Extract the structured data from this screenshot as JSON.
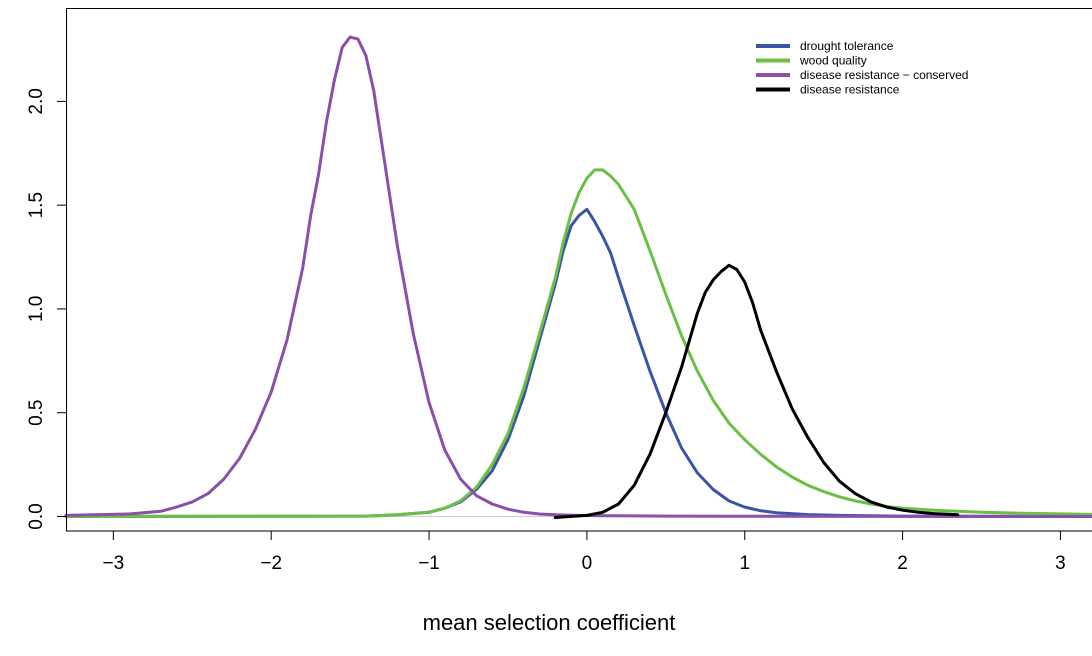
{
  "chart_data": {
    "type": "line",
    "xlabel": "mean selection coefficient",
    "ylabel": "",
    "title": "",
    "xlim": [
      -3.3,
      3.2
    ],
    "ylim": [
      -0.07,
      2.45
    ],
    "x_ticks": [
      -3,
      -2,
      -1,
      0,
      1,
      2,
      3
    ],
    "x_tick_labels": [
      "−3",
      "−2",
      "−1",
      "0",
      "1",
      "2",
      "3"
    ],
    "y_ticks": [
      0.0,
      0.5,
      1.0,
      1.5,
      2.0
    ],
    "y_tick_labels": [
      "0.0",
      "0.5",
      "1.0",
      "1.5",
      "2.0"
    ],
    "grid": false,
    "legend_position": "top-right",
    "series": [
      {
        "name": "drought tolerance",
        "color": "#3a55a4",
        "points": [
          [
            -3.3,
            0
          ],
          [
            -1.4,
            0.002
          ],
          [
            -1.2,
            0.008
          ],
          [
            -1.0,
            0.02
          ],
          [
            -0.9,
            0.04
          ],
          [
            -0.8,
            0.07
          ],
          [
            -0.7,
            0.13
          ],
          [
            -0.6,
            0.22
          ],
          [
            -0.5,
            0.37
          ],
          [
            -0.4,
            0.58
          ],
          [
            -0.3,
            0.85
          ],
          [
            -0.2,
            1.12
          ],
          [
            -0.15,
            1.28
          ],
          [
            -0.1,
            1.4
          ],
          [
            -0.05,
            1.45
          ],
          [
            0.0,
            1.48
          ],
          [
            0.05,
            1.42
          ],
          [
            0.1,
            1.35
          ],
          [
            0.15,
            1.27
          ],
          [
            0.2,
            1.15
          ],
          [
            0.3,
            0.92
          ],
          [
            0.4,
            0.7
          ],
          [
            0.5,
            0.5
          ],
          [
            0.6,
            0.33
          ],
          [
            0.7,
            0.21
          ],
          [
            0.8,
            0.13
          ],
          [
            0.9,
            0.075
          ],
          [
            1.0,
            0.045
          ],
          [
            1.1,
            0.028
          ],
          [
            1.2,
            0.018
          ],
          [
            1.4,
            0.009
          ],
          [
            1.6,
            0.005
          ],
          [
            2.0,
            0.002
          ],
          [
            2.5,
            0.001
          ],
          [
            3.2,
            0.001
          ]
        ]
      },
      {
        "name": "wood quality",
        "color": "#6cbf45",
        "points": [
          [
            -3.3,
            0
          ],
          [
            -1.4,
            0.002
          ],
          [
            -1.2,
            0.008
          ],
          [
            -1.0,
            0.02
          ],
          [
            -0.9,
            0.04
          ],
          [
            -0.8,
            0.075
          ],
          [
            -0.7,
            0.14
          ],
          [
            -0.6,
            0.25
          ],
          [
            -0.5,
            0.4
          ],
          [
            -0.4,
            0.62
          ],
          [
            -0.3,
            0.88
          ],
          [
            -0.2,
            1.15
          ],
          [
            -0.15,
            1.32
          ],
          [
            -0.1,
            1.46
          ],
          [
            -0.05,
            1.56
          ],
          [
            0.0,
            1.63
          ],
          [
            0.05,
            1.67
          ],
          [
            0.1,
            1.67
          ],
          [
            0.15,
            1.64
          ],
          [
            0.2,
            1.6
          ],
          [
            0.3,
            1.48
          ],
          [
            0.4,
            1.28
          ],
          [
            0.5,
            1.07
          ],
          [
            0.6,
            0.87
          ],
          [
            0.7,
            0.7
          ],
          [
            0.8,
            0.56
          ],
          [
            0.9,
            0.45
          ],
          [
            1.0,
            0.37
          ],
          [
            1.1,
            0.3
          ],
          [
            1.2,
            0.24
          ],
          [
            1.3,
            0.19
          ],
          [
            1.4,
            0.15
          ],
          [
            1.5,
            0.12
          ],
          [
            1.6,
            0.095
          ],
          [
            1.7,
            0.075
          ],
          [
            1.8,
            0.06
          ],
          [
            1.9,
            0.048
          ],
          [
            2.0,
            0.04
          ],
          [
            2.2,
            0.03
          ],
          [
            2.5,
            0.02
          ],
          [
            2.8,
            0.015
          ],
          [
            3.2,
            0.01
          ]
        ]
      },
      {
        "name": "disease resistance − conserved",
        "color": "#8a4fa8",
        "points": [
          [
            -3.3,
            0.005
          ],
          [
            -2.9,
            0.012
          ],
          [
            -2.7,
            0.025
          ],
          [
            -2.6,
            0.045
          ],
          [
            -2.5,
            0.07
          ],
          [
            -2.4,
            0.11
          ],
          [
            -2.3,
            0.18
          ],
          [
            -2.2,
            0.28
          ],
          [
            -2.1,
            0.42
          ],
          [
            -2.0,
            0.6
          ],
          [
            -1.9,
            0.85
          ],
          [
            -1.8,
            1.2
          ],
          [
            -1.75,
            1.45
          ],
          [
            -1.7,
            1.65
          ],
          [
            -1.65,
            1.9
          ],
          [
            -1.6,
            2.1
          ],
          [
            -1.55,
            2.26
          ],
          [
            -1.5,
            2.31
          ],
          [
            -1.45,
            2.3
          ],
          [
            -1.4,
            2.22
          ],
          [
            -1.35,
            2.05
          ],
          [
            -1.3,
            1.8
          ],
          [
            -1.25,
            1.55
          ],
          [
            -1.2,
            1.3
          ],
          [
            -1.1,
            0.88
          ],
          [
            -1.0,
            0.55
          ],
          [
            -0.9,
            0.32
          ],
          [
            -0.8,
            0.18
          ],
          [
            -0.7,
            0.1
          ],
          [
            -0.6,
            0.06
          ],
          [
            -0.5,
            0.035
          ],
          [
            -0.4,
            0.02
          ],
          [
            -0.3,
            0.012
          ],
          [
            -0.2,
            0.008
          ],
          [
            0.0,
            0.004
          ],
          [
            0.5,
            0.002
          ],
          [
            1.0,
            0.001
          ],
          [
            3.2,
            0.0
          ]
        ]
      },
      {
        "name": "disease resistance",
        "color": "#000000",
        "points": [
          [
            -0.2,
            -0.005
          ],
          [
            0.0,
            0.005
          ],
          [
            0.1,
            0.02
          ],
          [
            0.2,
            0.06
          ],
          [
            0.3,
            0.15
          ],
          [
            0.4,
            0.3
          ],
          [
            0.5,
            0.5
          ],
          [
            0.6,
            0.72
          ],
          [
            0.65,
            0.85
          ],
          [
            0.7,
            0.98
          ],
          [
            0.75,
            1.08
          ],
          [
            0.8,
            1.14
          ],
          [
            0.85,
            1.18
          ],
          [
            0.9,
            1.21
          ],
          [
            0.95,
            1.19
          ],
          [
            1.0,
            1.13
          ],
          [
            1.05,
            1.03
          ],
          [
            1.1,
            0.9
          ],
          [
            1.2,
            0.7
          ],
          [
            1.3,
            0.52
          ],
          [
            1.4,
            0.38
          ],
          [
            1.5,
            0.26
          ],
          [
            1.6,
            0.17
          ],
          [
            1.7,
            0.11
          ],
          [
            1.8,
            0.07
          ],
          [
            1.9,
            0.045
          ],
          [
            2.0,
            0.03
          ],
          [
            2.1,
            0.02
          ],
          [
            2.2,
            0.014
          ],
          [
            2.35,
            0.008
          ]
        ]
      }
    ]
  }
}
